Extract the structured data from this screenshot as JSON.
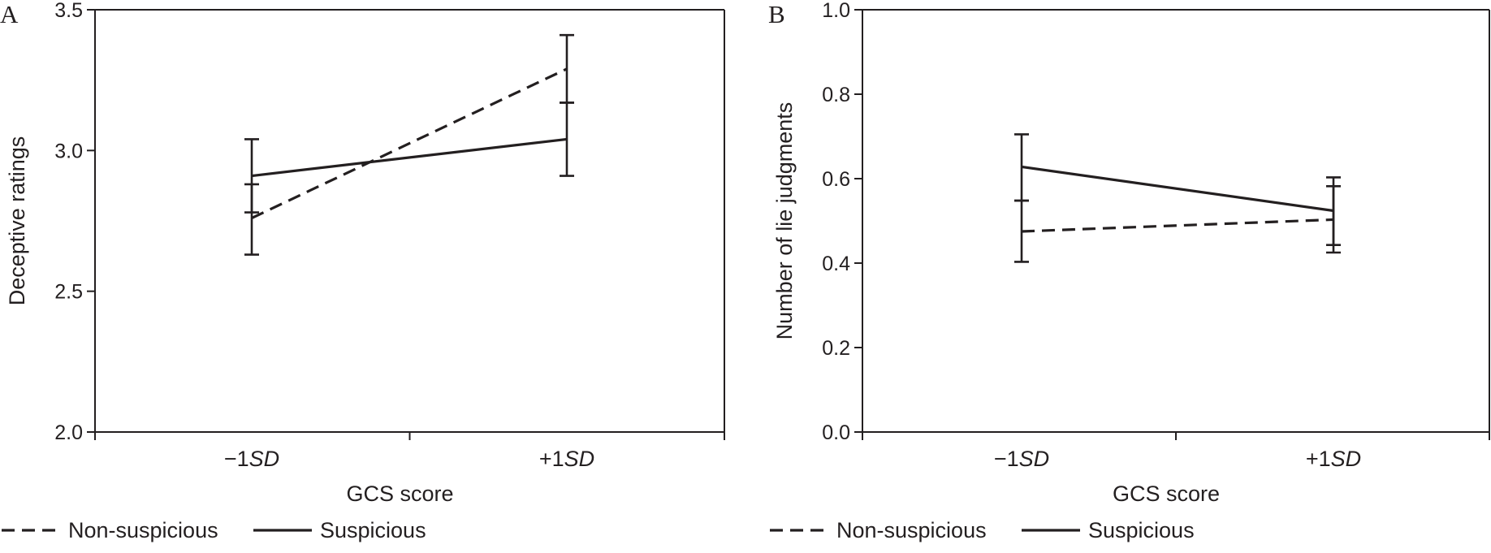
{
  "chart_data": [
    {
      "type": "line",
      "panel_label": "A",
      "categories": [
        "−1SD",
        "+1SD"
      ],
      "xlabel": "GCS score",
      "ylabel": "Deceptive ratings",
      "ylim": [
        2.0,
        3.5
      ],
      "yticks": [
        "2.0",
        "2.5",
        "3.0",
        "3.5"
      ],
      "series": [
        {
          "name": "Non-suspicious",
          "style": "dashed",
          "values": [
            2.76,
            3.29
          ],
          "err_low": [
            2.63,
            3.17
          ],
          "err_high": [
            2.88,
            3.41
          ]
        },
        {
          "name": "Suspicious",
          "style": "solid",
          "values": [
            2.91,
            3.04
          ],
          "err_low": [
            2.78,
            2.91
          ],
          "err_high": [
            3.04,
            3.17
          ]
        }
      ],
      "grid": false,
      "legend_position": "bottom-left"
    },
    {
      "type": "line",
      "panel_label": "B",
      "categories": [
        "−1SD",
        "+1SD"
      ],
      "xlabel": "GCS score",
      "ylabel": "Number of lie judgments",
      "ylim": [
        0.0,
        1.0
      ],
      "yticks": [
        "0.0",
        "0.2",
        "0.4",
        "0.6",
        "0.8",
        "1.0"
      ],
      "series": [
        {
          "name": "Non-suspicious",
          "style": "dashed",
          "values": [
            0.475,
            0.503
          ],
          "err_low": [
            0.403,
            0.443
          ],
          "err_high": [
            0.548,
            0.582
          ]
        },
        {
          "name": "Suspicious",
          "style": "solid",
          "values": [
            0.628,
            0.524
          ],
          "err_low": [
            0.548,
            0.425
          ],
          "err_high": [
            0.705,
            0.603
          ]
        }
      ],
      "grid": false,
      "legend_position": "bottom-left"
    }
  ]
}
